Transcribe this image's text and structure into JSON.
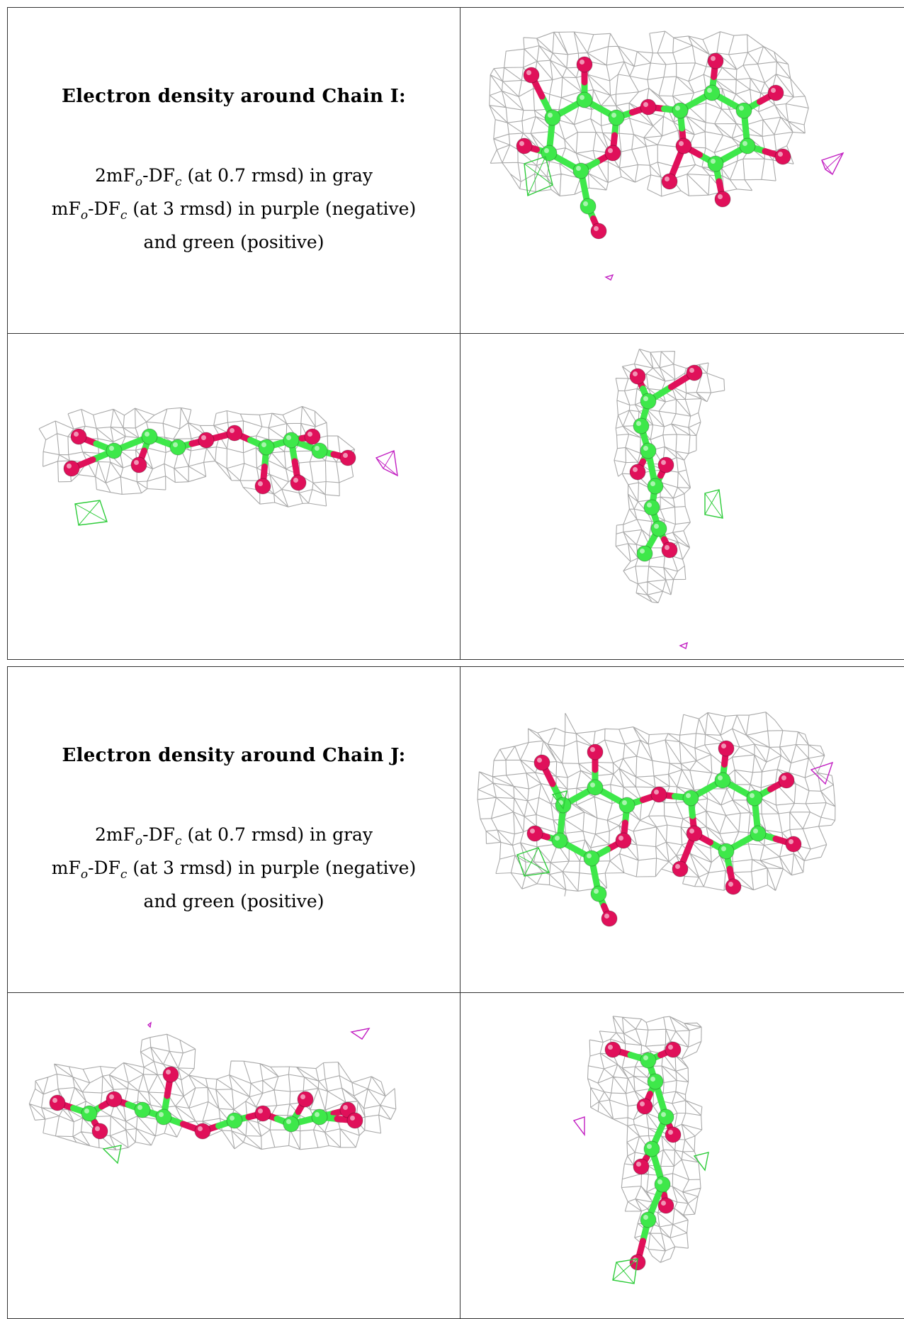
{
  "panels": [
    {
      "title": "Electron density around Chain I:",
      "line1_prefix": "2mF",
      "line1_sub1": "o",
      "line1_mid": "-DF",
      "line1_sub2": "c",
      "line1_suffix": " (at 0.7 rmsd) in gray",
      "line2_prefix": "mF",
      "line2_sub1": "o",
      "line2_mid": "-DF",
      "line2_sub2": "c",
      "line2_suffix": " (at 3 rmsd) in purple (negative)",
      "line3": "and green (positive)"
    },
    {
      "title": "Electron density around Chain J:",
      "line1_prefix": "2mF",
      "line1_sub1": "o",
      "line1_mid": "-DF",
      "line1_sub2": "c",
      "line1_suffix": " (at 0.7 rmsd) in gray",
      "line2_prefix": "mF",
      "line2_sub1": "o",
      "line2_mid": "-DF",
      "line2_sub2": "c",
      "line2_suffix": " (at 3 rmsd) in purple (negative)",
      "line3": "and green (positive)"
    }
  ],
  "colors": {
    "mesh_gray": "#9a9a9a",
    "carbon_green": "#3ee84a",
    "oxygen_red": "#e0105a",
    "diff_negative_purple": "#c21fc2",
    "diff_positive_green": "#2ecc3a"
  }
}
